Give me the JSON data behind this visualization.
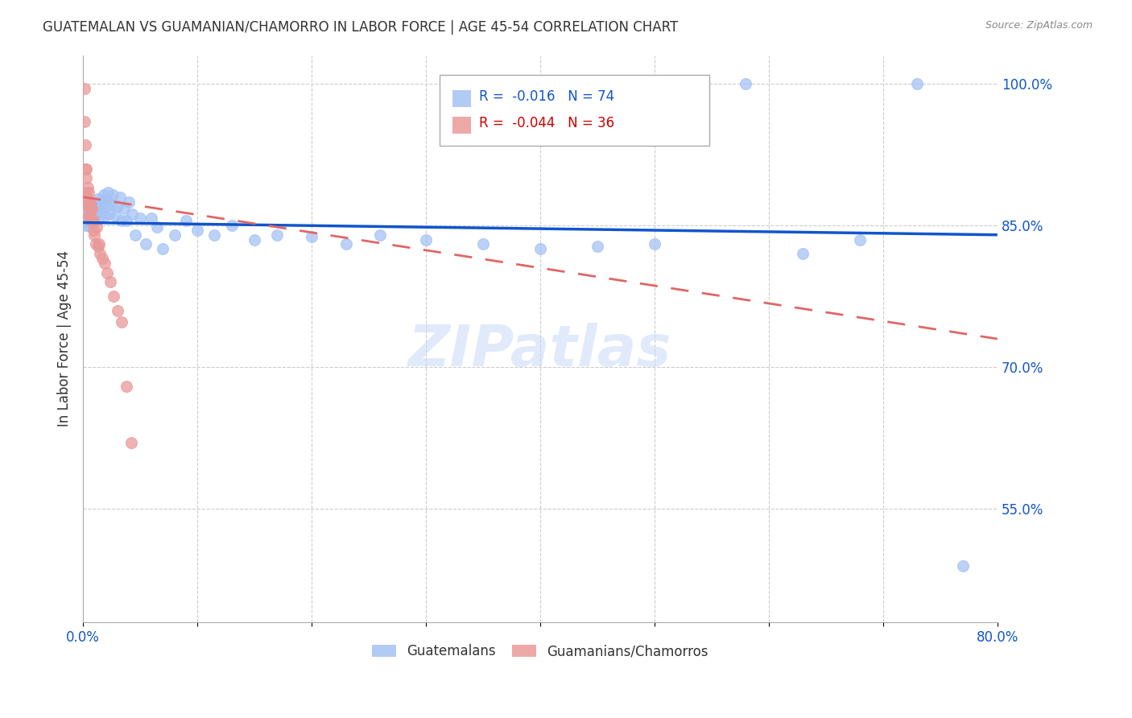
{
  "title": "GUATEMALAN VS GUAMANIAN/CHAMORRO IN LABOR FORCE | AGE 45-54 CORRELATION CHART",
  "source": "Source: ZipAtlas.com",
  "ylabel_left": "In Labor Force | Age 45-54",
  "y_tick_labels_right": [
    "100.0%",
    "85.0%",
    "70.0%",
    "55.0%"
  ],
  "y_tick_values_right": [
    1.0,
    0.85,
    0.7,
    0.55
  ],
  "xlim": [
    0.0,
    0.8
  ],
  "ylim": [
    0.43,
    1.03
  ],
  "legend_blue_r": "-0.016",
  "legend_blue_n": "74",
  "legend_pink_r": "-0.044",
  "legend_pink_n": "36",
  "blue_color": "#a4c2f4",
  "pink_color": "#ea9999",
  "trendline_blue_color": "#1155cc",
  "trendline_pink_color": "#e06666",
  "grid_color": "#cccccc",
  "blue_x": [
    0.001,
    0.002,
    0.002,
    0.003,
    0.003,
    0.003,
    0.004,
    0.004,
    0.005,
    0.005,
    0.005,
    0.006,
    0.006,
    0.006,
    0.007,
    0.007,
    0.008,
    0.008,
    0.009,
    0.009,
    0.01,
    0.01,
    0.011,
    0.012,
    0.012,
    0.013,
    0.013,
    0.014,
    0.015,
    0.015,
    0.016,
    0.017,
    0.018,
    0.019,
    0.02,
    0.021,
    0.022,
    0.023,
    0.025,
    0.026,
    0.028,
    0.03,
    0.032,
    0.034,
    0.036,
    0.038,
    0.04,
    0.043,
    0.046,
    0.05,
    0.055,
    0.06,
    0.065,
    0.07,
    0.08,
    0.09,
    0.1,
    0.115,
    0.13,
    0.15,
    0.17,
    0.2,
    0.23,
    0.26,
    0.3,
    0.35,
    0.4,
    0.45,
    0.5,
    0.58,
    0.63,
    0.68,
    0.73,
    0.77
  ],
  "blue_y": [
    0.855,
    0.862,
    0.85,
    0.858,
    0.865,
    0.87,
    0.855,
    0.868,
    0.85,
    0.862,
    0.872,
    0.857,
    0.864,
    0.873,
    0.853,
    0.866,
    0.856,
    0.87,
    0.855,
    0.865,
    0.86,
    0.87,
    0.875,
    0.862,
    0.872,
    0.865,
    0.878,
    0.87,
    0.86,
    0.875,
    0.867,
    0.875,
    0.882,
    0.86,
    0.87,
    0.878,
    0.885,
    0.862,
    0.872,
    0.882,
    0.86,
    0.87,
    0.88,
    0.855,
    0.868,
    0.855,
    0.875,
    0.862,
    0.84,
    0.858,
    0.83,
    0.858,
    0.848,
    0.825,
    0.84,
    0.855,
    0.845,
    0.84,
    0.85,
    0.835,
    0.84,
    0.838,
    0.83,
    0.84,
    0.835,
    0.83,
    0.825,
    0.828,
    0.83,
    1.0,
    0.82,
    0.835,
    1.0,
    0.49
  ],
  "pink_x": [
    0.001,
    0.001,
    0.002,
    0.002,
    0.003,
    0.003,
    0.003,
    0.004,
    0.004,
    0.004,
    0.005,
    0.005,
    0.005,
    0.006,
    0.006,
    0.007,
    0.007,
    0.008,
    0.008,
    0.009,
    0.009,
    0.01,
    0.011,
    0.012,
    0.013,
    0.014,
    0.015,
    0.017,
    0.019,
    0.021,
    0.024,
    0.027,
    0.03,
    0.034,
    0.038,
    0.042
  ],
  "pink_y": [
    0.96,
    0.995,
    0.935,
    0.91,
    0.9,
    0.885,
    0.91,
    0.878,
    0.89,
    0.87,
    0.875,
    0.86,
    0.885,
    0.86,
    0.873,
    0.855,
    0.868,
    0.856,
    0.868,
    0.855,
    0.845,
    0.84,
    0.83,
    0.848,
    0.828,
    0.83,
    0.82,
    0.815,
    0.81,
    0.8,
    0.79,
    0.775,
    0.76,
    0.748,
    0.68,
    0.62
  ],
  "blue_trendline_x": [
    0.0,
    0.8
  ],
  "blue_trendline_y": [
    0.853,
    0.84
  ],
  "pink_trendline_x": [
    0.0,
    0.8
  ],
  "pink_trendline_y": [
    0.88,
    0.73
  ]
}
